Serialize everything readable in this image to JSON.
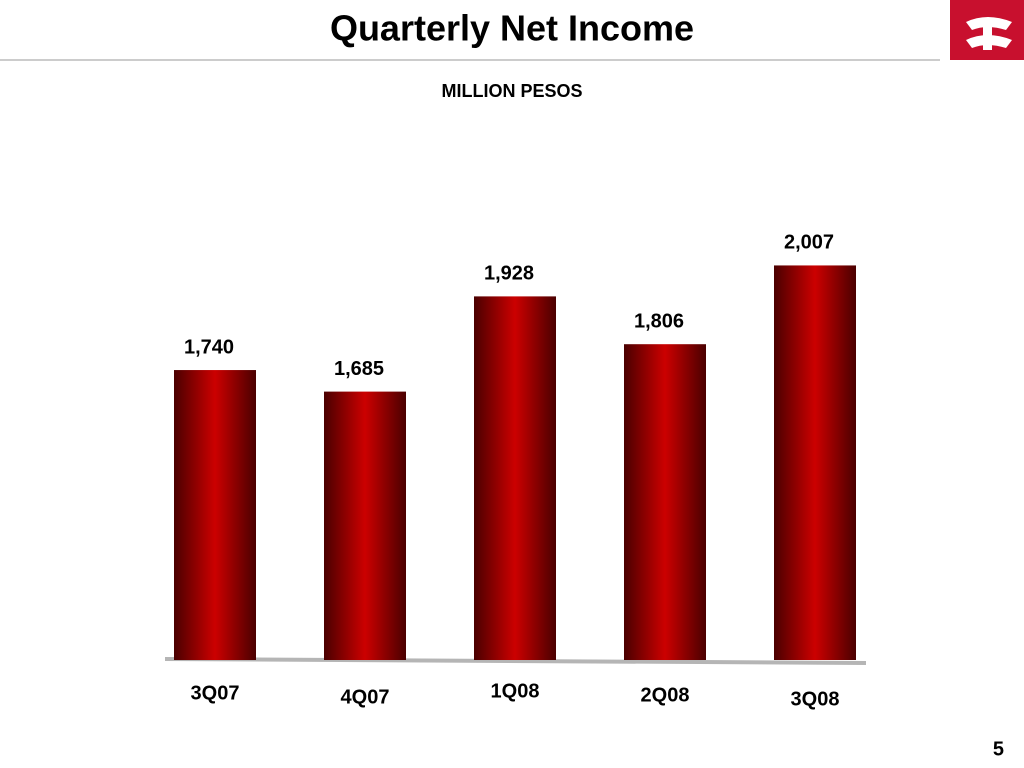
{
  "chart_data": {
    "type": "bar",
    "title": "Quarterly Net Income",
    "subtitle": "MILLION PESOS",
    "categories": [
      "3Q07",
      "4Q07",
      "1Q08",
      "2Q08",
      "3Q08"
    ],
    "values": [
      1740,
      1685,
      1928,
      1806,
      2007
    ],
    "value_labels": [
      "1,740",
      "1,685",
      "1,928",
      "1,806",
      "2,007"
    ],
    "color": "#cc0000",
    "ylim": [
      1000,
      2100
    ]
  },
  "page_number": "5"
}
